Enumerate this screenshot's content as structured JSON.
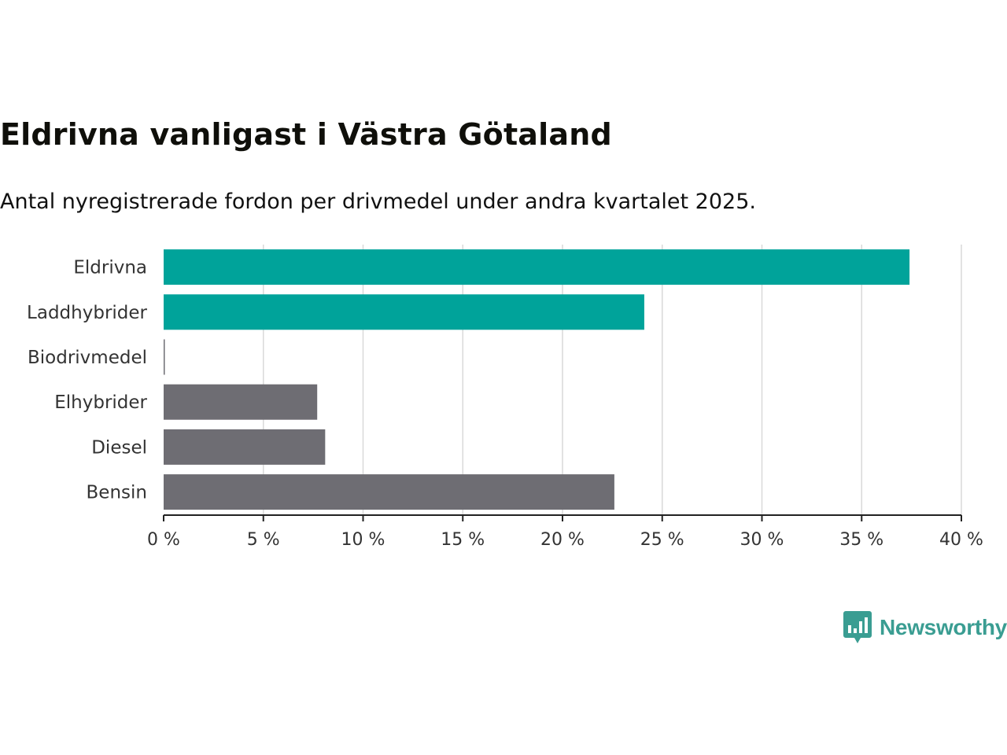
{
  "title": "Eldrivna vanligast i Västra Götaland",
  "subtitle": "Antal nyregistrerade fordon per drivmedel under andra kvartalet 2025.",
  "brand": {
    "name": "Newsworthy",
    "icon": "bar-chart-speech-bubble-icon",
    "color": "#3a9d92"
  },
  "colors": {
    "highlight": "#00a39a",
    "other": "#6e6d73",
    "grid": "#d9d9d9",
    "axis": "#222222"
  },
  "chart_data": {
    "type": "bar",
    "orientation": "horizontal",
    "title": "Eldrivna vanligast i Västra Götaland",
    "subtitle": "Antal nyregistrerade fordon per drivmedel under andra kvartalet 2025.",
    "xlabel": "",
    "ylabel": "",
    "categories": [
      "Eldrivna",
      "Laddhybrider",
      "Biodrivmedel",
      "Elhybrider",
      "Diesel",
      "Bensin"
    ],
    "values": [
      37.4,
      24.1,
      0.05,
      7.7,
      8.1,
      22.6
    ],
    "highlighted": [
      true,
      true,
      false,
      false,
      false,
      false
    ],
    "unit": "%",
    "xlim": [
      0,
      40
    ],
    "ticks": [
      0,
      5,
      10,
      15,
      20,
      25,
      30,
      35,
      40
    ],
    "tick_labels": [
      "0 %",
      "5 %",
      "10 %",
      "15 %",
      "20 %",
      "25 %",
      "30 %",
      "35 %",
      "40 %"
    ],
    "grid": true,
    "legend": "none"
  }
}
